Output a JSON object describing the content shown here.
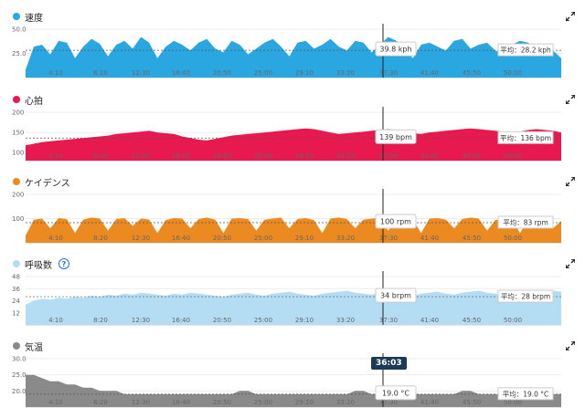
{
  "cursor_time": "36:03",
  "panels": [
    {
      "key": "speed",
      "title": "速度",
      "color": "#2aa7e0",
      "y_ticks": [
        "50.0",
        "25.0"
      ],
      "hover_value": "39.8 kph",
      "avg_label": "平均：28.2 kph",
      "help": false,
      "chart_data": {
        "type": "area",
        "series": [
          {
            "values": [
              8,
              32,
              34,
              24,
              38,
              36,
              20,
              32,
              40,
              35,
              22,
              34,
              38,
              30,
              42,
              36,
              20,
              32,
              38,
              34,
              28,
              36,
              40,
              30,
              26,
              38,
              34,
              24,
              30,
              36,
              40,
              32,
              22,
              36,
              38,
              30,
              34,
              40,
              32,
              28,
              38,
              36,
              26,
              34,
              42,
              38,
              30,
              20,
              34,
              36,
              32,
              28,
              38,
              40,
              30,
              34,
              36,
              28,
              24,
              34,
              38,
              36,
              30,
              22,
              28,
              20
            ]
          }
        ],
        "ylim": [
          0,
          50
        ],
        "average": 28.2
      }
    },
    {
      "key": "heart",
      "title": "心拍",
      "color": "#e8194f",
      "y_ticks": [
        "200",
        "150",
        "100"
      ],
      "hover_value": "139 bpm",
      "avg_label": "平均：136 bpm",
      "help": false,
      "chart_data": {
        "type": "area",
        "series": [
          {
            "values": [
              118,
              122,
              126,
              128,
              130,
              132,
              134,
              136,
              138,
              140,
              142,
              146,
              148,
              150,
              152,
              154,
              150,
              148,
              146,
              140,
              136,
              132,
              130,
              134,
              138,
              142,
              144,
              146,
              148,
              150,
              152,
              154,
              156,
              158,
              160,
              158,
              154,
              150,
              146,
              148,
              150,
              152,
              154,
              156,
              158,
              156,
              152,
              148,
              146,
              150,
              152,
              154,
              156,
              158,
              160,
              158,
              156,
              154,
              152,
              150,
              152,
              156,
              158,
              156,
              154,
              150
            ]
          }
        ],
        "ylim": [
          80,
          200
        ],
        "average": 136
      }
    },
    {
      "key": "cadence",
      "title": "ケイデンス",
      "color": "#ec8a22",
      "y_ticks": [
        "200",
        "100"
      ],
      "hover_value": "100 rpm",
      "avg_label": "平均：83 rpm",
      "help": false,
      "chart_data": {
        "type": "area",
        "series": [
          {
            "values": [
              30,
              95,
              100,
              60,
              102,
              98,
              40,
              96,
              104,
              100,
              50,
              98,
              102,
              70,
              100,
              96,
              40,
              94,
              102,
              100,
              60,
              98,
              104,
              96,
              40,
              100,
              102,
              98,
              50,
              96,
              100,
              104,
              60,
              98,
              102,
              94,
              40,
              100,
              104,
              98,
              60,
              96,
              100,
              102,
              50,
              98,
              104,
              96,
              40,
              100,
              102,
              96,
              60,
              98,
              104,
              100,
              50,
              94,
              100,
              102,
              40,
              98,
              104,
              96,
              60,
              90
            ]
          }
        ],
        "ylim": [
          0,
          200
        ],
        "average": 83
      }
    },
    {
      "key": "resp",
      "title": "呼吸数",
      "color": "#b4dcf2",
      "y_ticks": [
        "48",
        "36",
        "24",
        "12"
      ],
      "hover_value": "34 brpm",
      "avg_label": "平均：28 brpm",
      "help": true,
      "chart_data": {
        "type": "area",
        "series": [
          {
            "values": [
              20,
              24,
              26,
              25,
              27,
              26,
              28,
              27,
              29,
              28,
              30,
              29,
              31,
              30,
              32,
              31,
              30,
              29,
              31,
              30,
              32,
              31,
              30,
              29,
              28,
              30,
              31,
              32,
              30,
              29,
              31,
              32,
              33,
              31,
              30,
              29,
              31,
              32,
              33,
              34,
              32,
              31,
              30,
              32,
              33,
              31,
              30,
              29,
              31,
              32,
              33,
              31,
              30,
              32,
              33,
              34,
              32,
              31,
              30,
              32,
              33,
              31,
              30,
              32,
              34,
              33
            ]
          }
        ],
        "ylim": [
          0,
          48
        ],
        "average": 28
      }
    },
    {
      "key": "temp",
      "title": "気温",
      "color": "#8a8a8a",
      "y_ticks": [
        "30.0",
        "25.0",
        "20.0"
      ],
      "hover_value": "19.0 °C",
      "avg_label": "平均：19.0 °C",
      "help": false,
      "chart_data": {
        "type": "area",
        "series": [
          {
            "values": [
              25,
              25,
              24,
              23,
              23,
              22,
              22,
              21,
              21,
              20,
              20,
              20,
              19,
              19,
              19,
              19,
              19,
              19,
              19,
              19,
              19,
              19,
              19,
              19,
              19,
              19,
              20,
              20,
              19,
              19,
              19,
              19,
              19,
              19,
              19,
              19,
              19,
              19,
              19,
              19,
              20,
              20,
              19,
              19,
              19,
              19,
              19,
              19,
              19,
              19,
              19,
              19,
              19,
              20,
              20,
              19,
              19,
              19,
              19,
              19,
              19,
              19,
              20,
              20,
              19,
              19
            ]
          }
        ],
        "ylim": [
          15,
          30
        ],
        "average": 19.0
      }
    }
  ],
  "x_ticks": [
    "4:10",
    "8:20",
    "12:30",
    "16:40",
    "20:50",
    "25:00",
    "29:10",
    "33:20",
    "37:30",
    "41:40",
    "45:50",
    "50:00"
  ]
}
